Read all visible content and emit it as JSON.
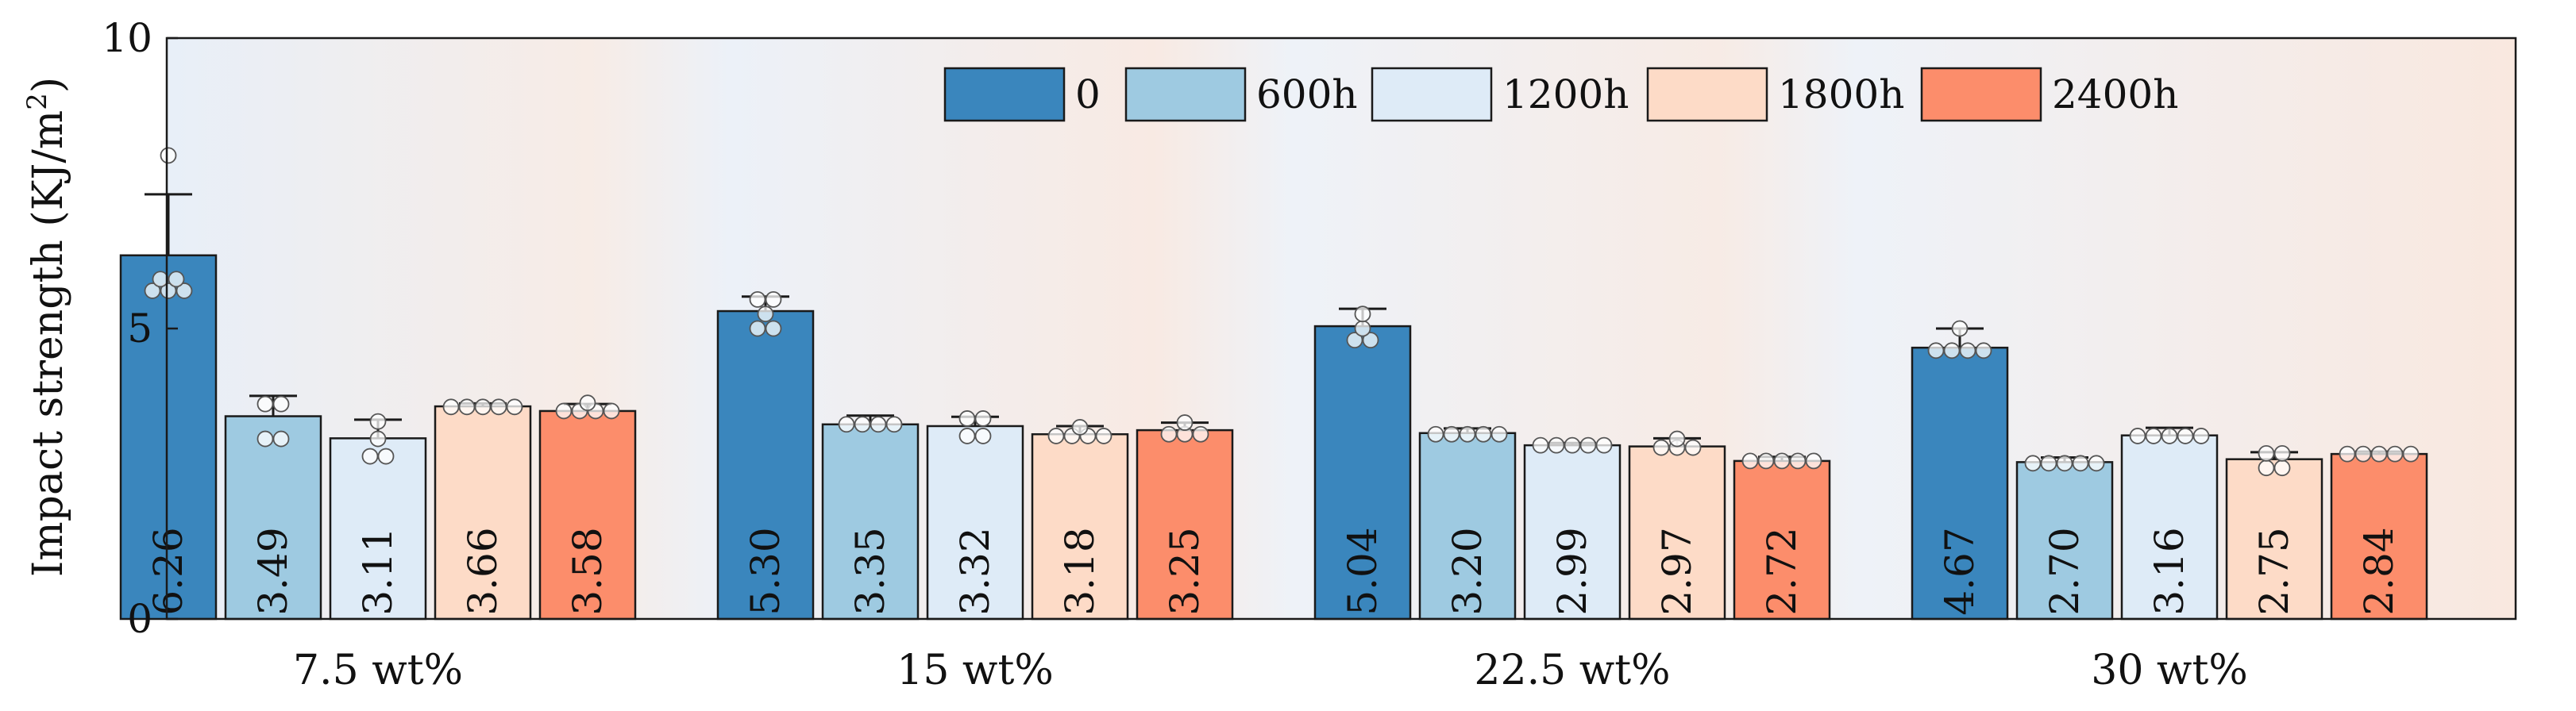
{
  "chart_data": {
    "type": "bar",
    "title": "",
    "xlabel": "",
    "ylabel": "Impact strength (KJ/m",
    "ylabel_superscript": "2",
    "ylabel_close": ")",
    "ylim": [
      0,
      10
    ],
    "yticks": [
      "0",
      "5",
      "10"
    ],
    "categories": [
      "7.5 wt%",
      "15 wt%",
      "22.5 wt%",
      "30 wt%"
    ],
    "legend_position": "top-right",
    "series": [
      {
        "name": "0",
        "color": "#3a86bd",
        "values": [
          6.26,
          5.3,
          5.04,
          4.67
        ],
        "labels": [
          "6.26",
          "5.30",
          "5.04",
          "4.67"
        ],
        "errors": [
          1.05,
          0.25,
          0.3,
          0.33
        ],
        "points": [
          [
            5.65,
            5.65,
            5.65,
            5.85,
            5.85,
            7.98
          ],
          [
            5.0,
            5.0,
            5.25,
            5.5,
            5.5
          ],
          [
            4.8,
            4.8,
            5.0,
            5.25
          ],
          [
            4.62,
            4.62,
            4.62,
            4.62,
            5.0
          ]
        ]
      },
      {
        "name": "600h",
        "color": "#9ecae1",
        "values": [
          3.49,
          3.35,
          3.2,
          2.7
        ],
        "labels": [
          "3.49",
          "3.35",
          "3.20",
          "2.70"
        ],
        "errors": [
          0.35,
          0.15,
          0.08,
          0.08
        ],
        "points": [
          [
            3.1,
            3.1,
            3.7,
            3.7
          ],
          [
            3.35,
            3.35,
            3.35,
            3.35
          ],
          [
            3.18,
            3.18,
            3.18,
            3.18,
            3.18
          ],
          [
            2.68,
            2.68,
            2.68,
            2.68,
            2.68
          ]
        ]
      },
      {
        "name": "1200h",
        "color": "#deebf7",
        "values": [
          3.11,
          3.32,
          2.99,
          3.16
        ],
        "labels": [
          "3.11",
          "3.32",
          "2.99",
          "3.16"
        ],
        "errors": [
          0.32,
          0.16,
          0.04,
          0.13
        ],
        "points": [
          [
            2.8,
            2.8,
            3.1,
            3.4
          ],
          [
            3.15,
            3.15,
            3.45,
            3.45
          ],
          [
            2.99,
            2.99,
            2.99,
            2.99,
            2.99
          ],
          [
            3.15,
            3.15,
            3.15,
            3.15,
            3.15
          ]
        ]
      },
      {
        "name": "1800h",
        "color": "#fddbc7",
        "values": [
          3.66,
          3.18,
          2.97,
          2.75
        ],
        "labels": [
          "3.66",
          "3.18",
          "2.97",
          "2.75"
        ],
        "errors": [
          0.05,
          0.14,
          0.14,
          0.12
        ],
        "points": [
          [
            3.65,
            3.65,
            3.65,
            3.65,
            3.65
          ],
          [
            3.15,
            3.15,
            3.15,
            3.15,
            3.3
          ],
          [
            2.95,
            2.95,
            2.95,
            3.1
          ],
          [
            2.6,
            2.6,
            2.85,
            2.85
          ]
        ]
      },
      {
        "name": "2400h",
        "color": "#fc8d6b",
        "values": [
          3.58,
          3.25,
          2.72,
          2.84
        ],
        "labels": [
          "3.58",
          "3.25",
          "2.72",
          "2.84"
        ],
        "errors": [
          0.12,
          0.13,
          0.07,
          0.04
        ],
        "points": [
          [
            3.58,
            3.58,
            3.58,
            3.58,
            3.72
          ],
          [
            3.18,
            3.18,
            3.18,
            3.38
          ],
          [
            2.72,
            2.72,
            2.72,
            2.72,
            2.72
          ],
          [
            2.84,
            2.84,
            2.84,
            2.84,
            2.84
          ]
        ]
      }
    ]
  }
}
